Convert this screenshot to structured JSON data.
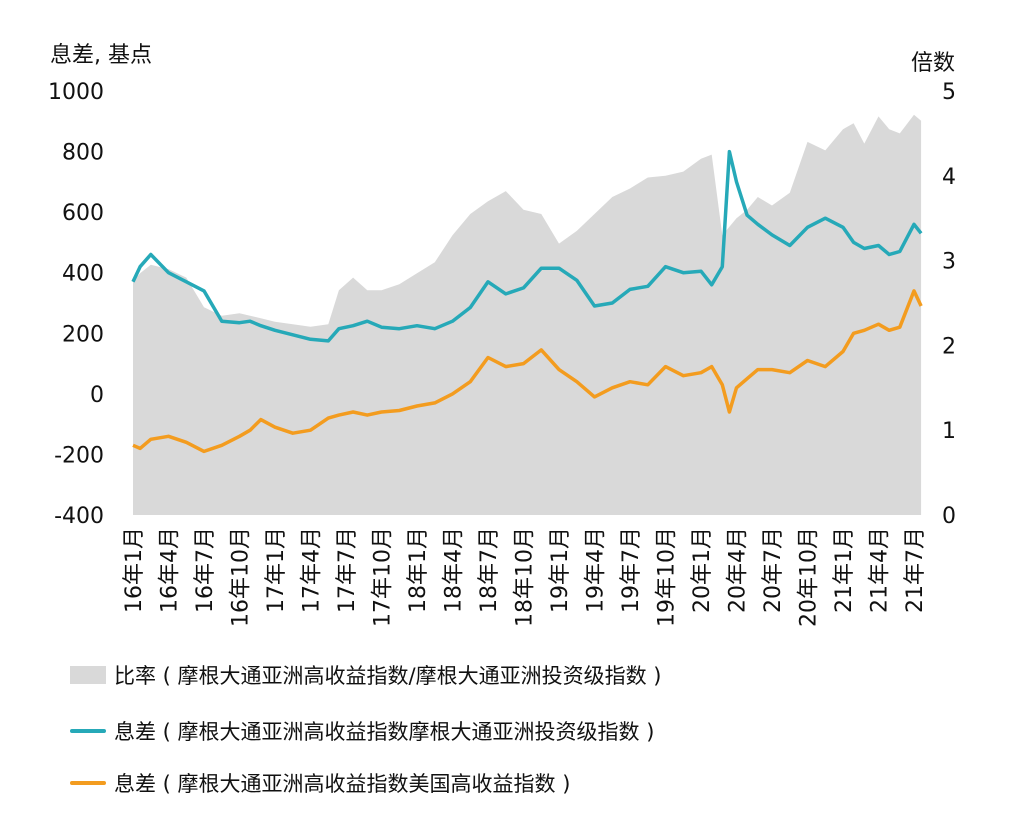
{
  "chart_data": {
    "type": "line",
    "left_axis_label": "息差, 基点",
    "right_axis_label": "倍数",
    "left_ylim": [
      -400,
      1000
    ],
    "right_ylim": [
      0,
      5
    ],
    "left_ticks": [
      "1000",
      "800",
      "600",
      "400",
      "200",
      "0",
      "-200",
      "-400"
    ],
    "right_ticks": [
      "5",
      "4",
      "3",
      "2",
      "1",
      "0"
    ],
    "x_tick_labels": [
      "16年1月",
      "16年4月",
      "16年7月",
      "16年10月",
      "17年1月",
      "17年4月",
      "17年7月",
      "17年10月",
      "18年1月",
      "18年4月",
      "18年7月",
      "18年10月",
      "19年1月",
      "19年4月",
      "19年7月",
      "19年10月",
      "20年1月",
      "20年4月",
      "20年7月",
      "20年10月",
      "21年1月",
      "21年4月",
      "21年7月"
    ],
    "series": [
      {
        "name": "比率(摩根大通亚洲高收益指数/摩根大通亚洲投资级指数)",
        "axis": "right",
        "kind": "area",
        "color": "#d9d9d9",
        "x": [
          0,
          0.2,
          0.5,
          1,
          1.5,
          2,
          2.5,
          3,
          3.3,
          3.6,
          4,
          4.5,
          5,
          5.5,
          5.8,
          6.2,
          6.6,
          7,
          7.5,
          8,
          8.5,
          9,
          9.5,
          10,
          10.5,
          11,
          11.5,
          12,
          12.5,
          13,
          13.5,
          14,
          14.5,
          15,
          15.5,
          16,
          16.3,
          16.6,
          17,
          17.3,
          17.6,
          18,
          18.5,
          19,
          19.5,
          20,
          20.3,
          20.6,
          21,
          21.3,
          21.6,
          22,
          22.2
        ],
        "values": [
          2.75,
          2.85,
          2.95,
          2.9,
          2.8,
          2.45,
          2.35,
          2.38,
          2.35,
          2.32,
          2.28,
          2.25,
          2.22,
          2.25,
          2.65,
          2.8,
          2.65,
          2.65,
          2.72,
          2.85,
          2.98,
          3.3,
          3.55,
          3.7,
          3.82,
          3.6,
          3.55,
          3.2,
          3.35,
          3.55,
          3.75,
          3.85,
          3.98,
          4.0,
          4.05,
          4.2,
          4.25,
          3.3,
          3.5,
          3.6,
          3.75,
          3.65,
          3.8,
          4.4,
          4.3,
          4.55,
          4.62,
          4.38,
          4.7,
          4.55,
          4.5,
          4.72,
          4.65
        ]
      },
      {
        "name": "息差(摩根大通亚洲高收益指数摩根大通亚洲投资级指数)",
        "axis": "left",
        "kind": "line",
        "color": "#26a9b8",
        "x": [
          0,
          0.2,
          0.5,
          1,
          1.5,
          2,
          2.5,
          3,
          3.3,
          3.6,
          4,
          4.5,
          5,
          5.5,
          5.8,
          6.2,
          6.6,
          7,
          7.5,
          8,
          8.5,
          9,
          9.5,
          10,
          10.5,
          11,
          11.5,
          12,
          12.5,
          13,
          13.5,
          14,
          14.5,
          15,
          15.5,
          16,
          16.3,
          16.6,
          16.8,
          17,
          17.3,
          17.6,
          18,
          18.5,
          19,
          19.5,
          20,
          20.3,
          20.6,
          21,
          21.3,
          21.6,
          22,
          22.2
        ],
        "values": [
          370,
          420,
          460,
          400,
          370,
          340,
          240,
          235,
          240,
          225,
          210,
          195,
          180,
          175,
          215,
          225,
          240,
          220,
          215,
          225,
          215,
          240,
          285,
          370,
          330,
          350,
          415,
          415,
          375,
          290,
          300,
          345,
          355,
          420,
          400,
          405,
          360,
          420,
          800,
          700,
          590,
          560,
          525,
          490,
          550,
          580,
          550,
          500,
          480,
          490,
          460,
          470,
          560,
          530
        ]
      },
      {
        "name": "息差(摩根大通亚洲高收益指数美国高收益指数)",
        "axis": "left",
        "kind": "line",
        "color": "#f39c1f",
        "x": [
          0,
          0.2,
          0.5,
          1,
          1.5,
          2,
          2.5,
          3,
          3.3,
          3.6,
          4,
          4.5,
          5,
          5.5,
          5.8,
          6.2,
          6.6,
          7,
          7.5,
          8,
          8.5,
          9,
          9.5,
          10,
          10.5,
          11,
          11.5,
          12,
          12.5,
          13,
          13.5,
          14,
          14.5,
          15,
          15.5,
          16,
          16.3,
          16.6,
          16.8,
          17,
          17.3,
          17.6,
          18,
          18.5,
          19,
          19.5,
          20,
          20.3,
          20.6,
          21,
          21.3,
          21.6,
          22,
          22.2
        ],
        "values": [
          -170,
          -180,
          -150,
          -140,
          -160,
          -190,
          -170,
          -140,
          -120,
          -85,
          -110,
          -130,
          -120,
          -80,
          -70,
          -60,
          -70,
          -60,
          -55,
          -40,
          -30,
          0,
          40,
          120,
          90,
          100,
          145,
          80,
          40,
          -10,
          20,
          40,
          30,
          90,
          60,
          70,
          90,
          30,
          -60,
          20,
          50,
          80,
          80,
          70,
          110,
          90,
          140,
          200,
          210,
          230,
          210,
          220,
          340,
          290
        ]
      }
    ]
  },
  "legend": [
    {
      "label": "比率 ( 摩根大通亚洲高收益指数/摩根大通亚洲投资级指数 )",
      "color": "#d9d9d9",
      "kind": "area"
    },
    {
      "label": "息差 ( 摩根大通亚洲高收益指数摩根大通亚洲投资级指数 )",
      "color": "#26a9b8",
      "kind": "line"
    },
    {
      "label": "息差 ( 摩根大通亚洲高收益指数美国高收益指数 )",
      "color": "#f39c1f",
      "kind": "line"
    }
  ]
}
